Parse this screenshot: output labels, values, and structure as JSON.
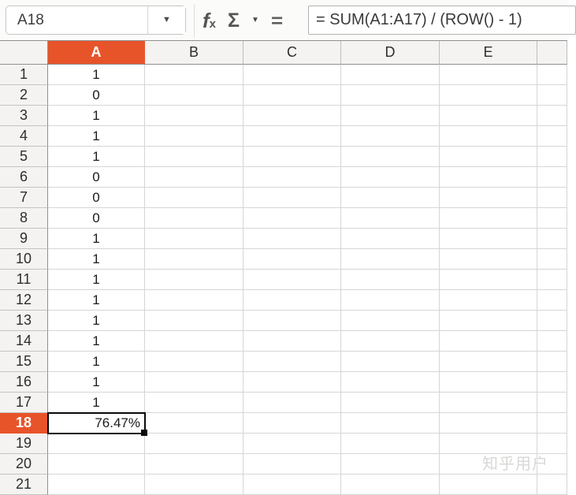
{
  "colors": {
    "accent": "#E8542A",
    "selection_border": "#0A0A0A"
  },
  "toolbar": {
    "cell_reference": "A18",
    "formula": "= SUM(A1:A17) / (ROW() - 1)",
    "icons": {
      "dropdown_caret": "▼",
      "function_f": "f",
      "function_x": "x",
      "sum": "Σ",
      "sum_caret": "▼",
      "equals": "="
    }
  },
  "sheet": {
    "columns": [
      {
        "label": "A",
        "selected": true
      },
      {
        "label": "B"
      },
      {
        "label": "C"
      },
      {
        "label": "D"
      },
      {
        "label": "E"
      },
      {
        "label": ""
      }
    ],
    "rows": [
      {
        "n": "1",
        "a": "1"
      },
      {
        "n": "2",
        "a": "0"
      },
      {
        "n": "3",
        "a": "1"
      },
      {
        "n": "4",
        "a": "1"
      },
      {
        "n": "5",
        "a": "1"
      },
      {
        "n": "6",
        "a": "0"
      },
      {
        "n": "7",
        "a": "0"
      },
      {
        "n": "8",
        "a": "0"
      },
      {
        "n": "9",
        "a": "1"
      },
      {
        "n": "10",
        "a": "1"
      },
      {
        "n": "11",
        "a": "1"
      },
      {
        "n": "12",
        "a": "1"
      },
      {
        "n": "13",
        "a": "1"
      },
      {
        "n": "14",
        "a": "1"
      },
      {
        "n": "15",
        "a": "1"
      },
      {
        "n": "16",
        "a": "1"
      },
      {
        "n": "17",
        "a": "1"
      },
      {
        "n": "18",
        "a": "76.47%",
        "selected": true,
        "align": "right"
      },
      {
        "n": "19",
        "a": ""
      },
      {
        "n": "20",
        "a": ""
      },
      {
        "n": "21",
        "a": ""
      }
    ]
  },
  "watermark": "知乎用户"
}
